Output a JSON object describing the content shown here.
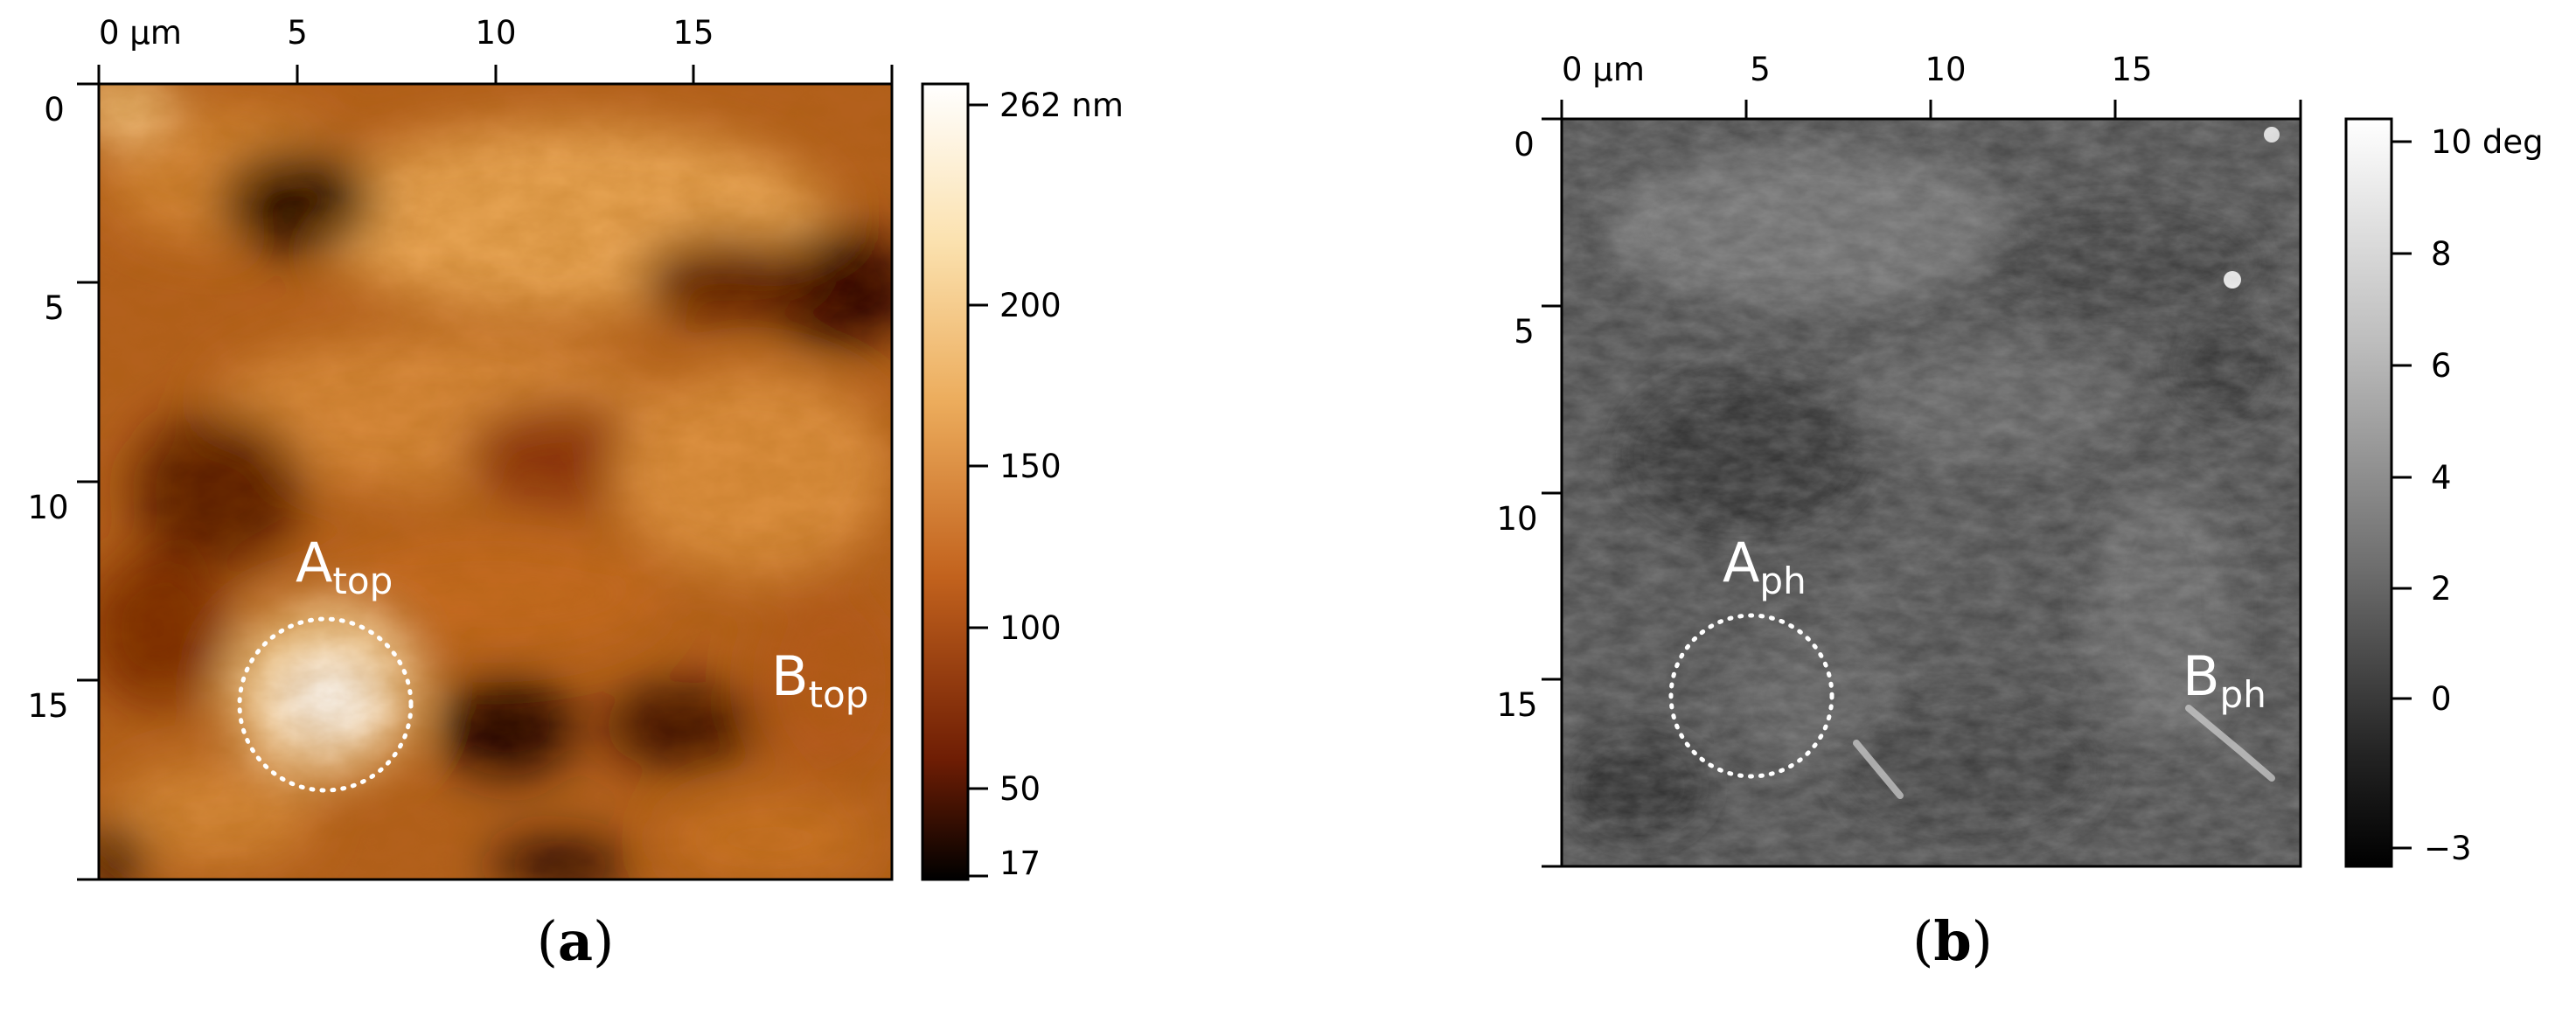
{
  "panels": [
    {
      "id": "a",
      "caption_open": "(",
      "caption_letter": "a",
      "caption_close": ")",
      "x_ticks": [
        "0 µm",
        "5",
        "10",
        "15"
      ],
      "y_ticks": [
        "0",
        "5",
        "10",
        "15"
      ],
      "colorbar": {
        "ticks": [
          "262 nm",
          "200",
          "150",
          "100",
          "50",
          "17"
        ],
        "colormap": [
          "#ffffff",
          "#fbe1ae",
          "#ecac5c",
          "#c2621d",
          "#6e1d04",
          "#000000"
        ]
      },
      "labels": [
        {
          "main": "A",
          "sub": "top"
        },
        {
          "main": "B",
          "sub": "top"
        }
      ]
    },
    {
      "id": "b",
      "caption_open": "(",
      "caption_letter": "b",
      "caption_close": ")",
      "x_ticks": [
        "0 µm",
        "5",
        "10",
        "15"
      ],
      "y_ticks": [
        "0",
        "5",
        "10",
        "15"
      ],
      "colorbar": {
        "ticks": [
          "10 deg",
          "8",
          "6",
          "4",
          "2",
          "0",
          "−3"
        ],
        "colormap": [
          "#ffffff",
          "#c8c8c8",
          "#8c8c8c",
          "#505050",
          "#1e1e1e",
          "#000000"
        ]
      },
      "labels": [
        {
          "main": "A",
          "sub": "ph"
        },
        {
          "main": "B",
          "sub": "ph"
        }
      ]
    }
  ]
}
